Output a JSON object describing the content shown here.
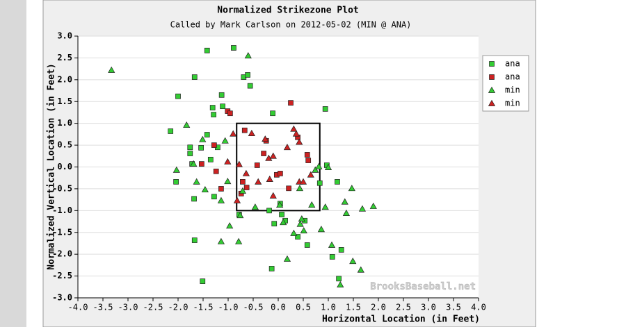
{
  "chart_data": {
    "type": "scatter",
    "title": "Normalized Strikezone Plot",
    "subtitle": "Called by Mark Carlson on 2012-05-02 (MIN @ ANA)",
    "x_label": "Horizontal Location (in Feet)",
    "y_label": "Normalized Vertical Location (in Feet)",
    "watermark": "BrooksBaseball.net",
    "grid": true,
    "legend": "right",
    "xlim": [
      -4,
      4
    ],
    "ylim": [
      -3,
      3
    ],
    "xticks": [
      {
        "value": -4,
        "label": "-4.0"
      },
      {
        "value": -3.5,
        "label": "-3.5"
      },
      {
        "value": -3,
        "label": "-3.0"
      },
      {
        "value": -2.5,
        "label": "-2.5"
      },
      {
        "value": -2,
        "label": "-2.0"
      },
      {
        "value": -1.5,
        "label": "-1.5"
      },
      {
        "value": -1,
        "label": "-1.0"
      },
      {
        "value": -0.5,
        "label": "-0.5"
      },
      {
        "value": 0,
        "label": "0.0"
      },
      {
        "value": 0.5,
        "label": "0.5"
      },
      {
        "value": 1,
        "label": "1.0"
      },
      {
        "value": 1.5,
        "label": "1.5"
      },
      {
        "value": 2,
        "label": "2.0"
      },
      {
        "value": 2.5,
        "label": "2.5"
      },
      {
        "value": 3,
        "label": "3.0"
      },
      {
        "value": 3.5,
        "label": "3.5"
      },
      {
        "value": 4,
        "label": "4.0"
      }
    ],
    "yticks": [
      {
        "value": 3,
        "label": "3.0"
      },
      {
        "value": 2.5,
        "label": "2.5"
      },
      {
        "value": 2,
        "label": "2.0"
      },
      {
        "value": 1.5,
        "label": "1.5"
      },
      {
        "value": 1,
        "label": "1.0"
      },
      {
        "value": 0.5,
        "label": "0.5"
      },
      {
        "value": 0,
        "label": "0.0"
      },
      {
        "value": -0.5,
        "label": "-0.5"
      },
      {
        "value": -1,
        "label": "-1.0"
      },
      {
        "value": -1.5,
        "label": "-1.5"
      },
      {
        "value": -2,
        "label": "-2.0"
      },
      {
        "value": -2.5,
        "label": "-2.5"
      },
      {
        "value": -3,
        "label": "-3.0"
      }
    ],
    "strike_zone": {
      "x": [
        -0.83,
        0.83
      ],
      "y": [
        -1,
        1
      ]
    },
    "series": [
      {
        "name": "ana",
        "marker": "square",
        "color": "#33cc33",
        "x": [
          -1.42,
          -0.89,
          -1.67,
          -0.69,
          -0.61,
          -0.56,
          -2.0,
          -1.13,
          -1.31,
          -1.29,
          -1.11,
          -0.11,
          0.94,
          -2.15,
          -1.42,
          -1.76,
          -1.76,
          -1.54,
          -1.21,
          -1.35,
          -1.72,
          -2.04,
          0.97,
          1.18,
          -1.68,
          -1.28,
          -0.78,
          0.04,
          -0.18,
          0.07,
          0.14,
          -0.08,
          0.53,
          0.39,
          0.58,
          -1.67,
          1.08,
          -0.13,
          1.26,
          1.21,
          -1.51,
          0.83
        ],
        "y": [
          2.67,
          2.73,
          2.06,
          2.06,
          2.11,
          1.86,
          1.62,
          1.65,
          1.36,
          1.2,
          1.39,
          1.23,
          1.33,
          0.82,
          0.74,
          0.45,
          0.31,
          0.44,
          0.45,
          0.17,
          0.07,
          -0.34,
          0.04,
          -0.34,
          -0.73,
          -0.68,
          -1.09,
          -0.84,
          -1.0,
          -1.09,
          -1.23,
          -1.3,
          -1.23,
          -1.6,
          -1.79,
          -1.68,
          -2.06,
          -2.33,
          -1.9,
          -2.56,
          -2.62,
          -0.37
        ]
      },
      {
        "name": "ana",
        "marker": "square",
        "color": "#cc2222",
        "x": [
          0.25,
          -1.01,
          -0.96,
          -1.28,
          -1.53,
          -1.24,
          -1.14,
          -0.67,
          -0.42,
          -0.29,
          -0.24,
          -0.03,
          0.04,
          0.21,
          0.39,
          0.6,
          0.58,
          -0.71,
          -0.74,
          -0.63
        ],
        "y": [
          1.47,
          1.28,
          1.23,
          0.5,
          0.07,
          -0.1,
          -0.5,
          0.84,
          0.04,
          0.31,
          0.6,
          -0.18,
          -0.15,
          -0.49,
          0.68,
          0.15,
          0.28,
          -0.34,
          -0.61,
          -0.47
        ]
      },
      {
        "name": "min",
        "marker": "triangle",
        "color": "#33cc33",
        "x": [
          -3.33,
          -0.6,
          -1.83,
          -1.51,
          -1.06,
          -1.69,
          -2.03,
          -1.63,
          -1.46,
          -1.01,
          -1.14,
          -0.97,
          -1.14,
          -0.79,
          -0.71,
          -0.76,
          -0.46,
          0.03,
          0.1,
          0.18,
          0.43,
          0.47,
          0.44,
          0.31,
          0.51,
          0.67,
          0.86,
          0.94,
          0.74,
          0.81,
          1.0,
          1.07,
          1.33,
          1.36,
          1.47,
          1.49,
          1.65,
          1.68,
          1.9,
          1.24
        ],
        "y": [
          2.22,
          2.55,
          0.96,
          0.63,
          0.6,
          0.07,
          -0.07,
          -0.34,
          -0.52,
          -0.33,
          -0.77,
          -1.35,
          -1.71,
          -1.71,
          -0.55,
          -1.11,
          -0.92,
          -0.87,
          -1.27,
          -2.11,
          -0.49,
          -1.19,
          -1.31,
          -1.52,
          -1.46,
          -0.87,
          -1.43,
          -0.92,
          -0.07,
          0.01,
          -0.01,
          -1.79,
          -0.8,
          -1.06,
          -0.49,
          -2.16,
          -2.36,
          -0.96,
          -0.9,
          -2.7
        ]
      },
      {
        "name": "min",
        "marker": "triangle",
        "color": "#cc2222",
        "x": [
          -0.9,
          -0.53,
          -0.26,
          -0.19,
          -0.1,
          0.18,
          0.31,
          0.36,
          0.42,
          -0.78,
          -1.01,
          -0.4,
          -0.17,
          -0.1,
          -0.82,
          0.42,
          0.5,
          0.65,
          -0.64
        ],
        "y": [
          0.76,
          0.77,
          0.64,
          0.2,
          0.25,
          0.45,
          0.87,
          0.76,
          0.57,
          0.06,
          0.12,
          -0.34,
          -0.28,
          -0.66,
          -0.77,
          -0.34,
          -0.34,
          -0.18,
          -0.15
        ]
      }
    ]
  }
}
